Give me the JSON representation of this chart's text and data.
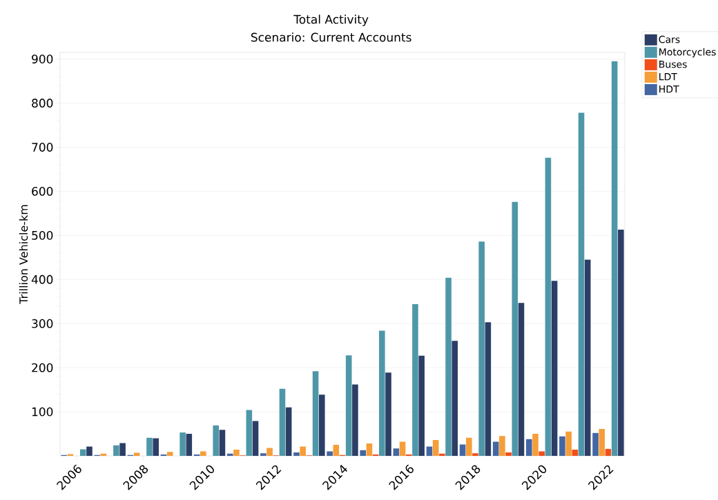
{
  "chart_data": {
    "type": "bar",
    "title": "Total Activity",
    "subtitle": "Scenario: Current Accounts",
    "ylabel": "Trillion Vehicle-km",
    "categories": [
      "2006",
      null,
      "2008",
      null,
      "2010",
      null,
      "2012",
      null,
      "2014",
      null,
      "2016",
      null,
      "2018",
      null,
      "2020",
      null,
      "2022"
    ],
    "series": [
      {
        "name": "HDT",
        "color": "#4466a3",
        "values": [
          2,
          2,
          2,
          3,
          3,
          5,
          6,
          8,
          10,
          13,
          17,
          21,
          26,
          32,
          38,
          44,
          52
        ]
      },
      {
        "name": "LDT",
        "color": "#f59e3a",
        "values": [
          4,
          5,
          7,
          9,
          10,
          14,
          18,
          21,
          25,
          28,
          32,
          36,
          41,
          45,
          50,
          55,
          61
        ]
      },
      {
        "name": "Buses",
        "color": "#f24e1a",
        "values": [
          null,
          null,
          null,
          null,
          null,
          1,
          1,
          1,
          2,
          3,
          3,
          5,
          6,
          8,
          10,
          14,
          16
        ]
      },
      {
        "name": "Motorcycles",
        "color": "#4e97a8",
        "values": [
          15,
          24,
          41,
          53,
          69,
          104,
          152,
          192,
          228,
          284,
          344,
          404,
          486,
          576,
          676,
          778,
          895
        ]
      },
      {
        "name": "Cars",
        "color": "#2c3e66",
        "values": [
          21,
          29,
          40,
          50,
          59,
          79,
          110,
          139,
          162,
          189,
          227,
          261,
          303,
          347,
          397,
          445,
          513
        ]
      }
    ],
    "ylim": [
      0,
      915
    ],
    "yticks": [
      100,
      200,
      300,
      400,
      500,
      600,
      700,
      800,
      900
    ],
    "grid": "y",
    "legend": "top right"
  }
}
